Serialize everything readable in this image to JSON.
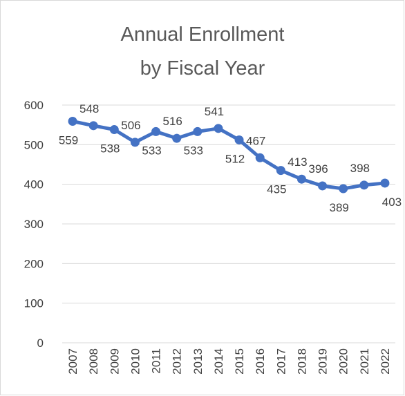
{
  "chart_data": {
    "type": "line",
    "title_lines": [
      "Annual Enrollment",
      "by Fiscal Year"
    ],
    "xlabel": "",
    "ylabel": "",
    "categories": [
      "2007",
      "2008",
      "2009",
      "2010",
      "2011",
      "2012",
      "2013",
      "2014",
      "2015",
      "2016",
      "2017",
      "2018",
      "2019",
      "2020",
      "2021",
      "2022"
    ],
    "series": [
      {
        "values": [
          559,
          548,
          538,
          506,
          533,
          516,
          533,
          541,
          512,
          467,
          435,
          413,
          396,
          389,
          398,
          403
        ]
      }
    ],
    "ylim": [
      0,
      600
    ],
    "yticks": [
      0,
      100,
      200,
      300,
      400,
      500,
      600
    ],
    "label_positions": [
      "below",
      "above",
      "below",
      "above",
      "below",
      "above",
      "below",
      "above",
      "below",
      "above",
      "below",
      "above",
      "above",
      "below",
      "above",
      "below"
    ],
    "grid": true,
    "legend": "none",
    "line_color": "#4472c4"
  }
}
